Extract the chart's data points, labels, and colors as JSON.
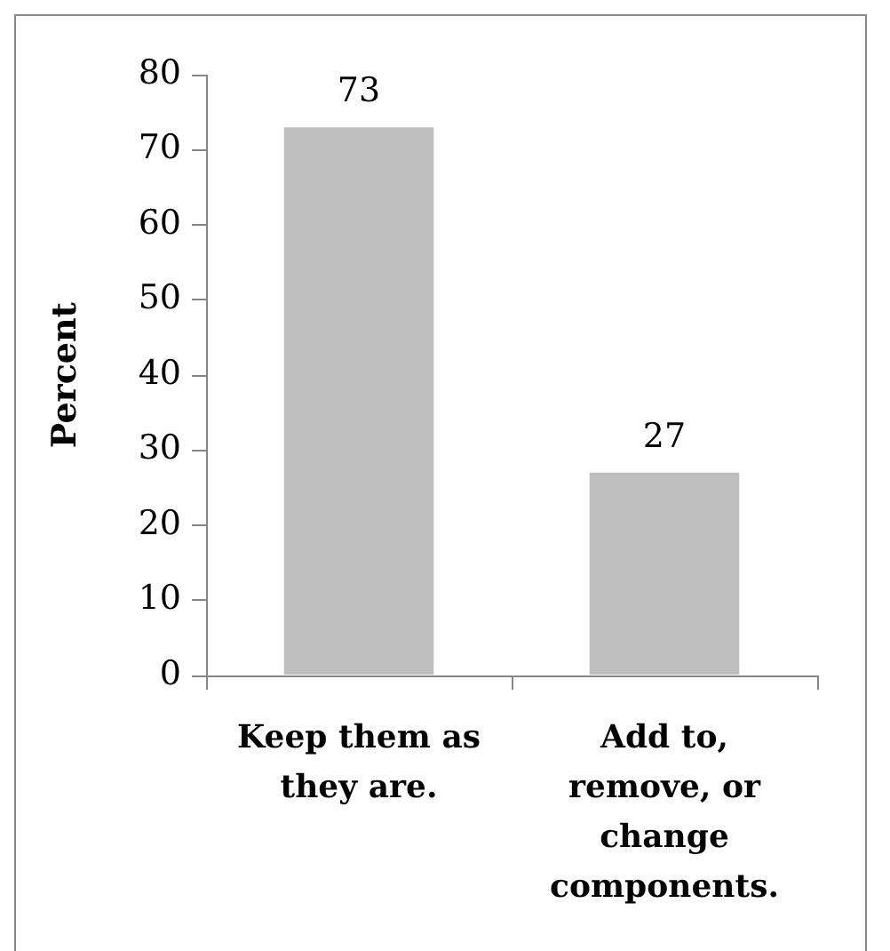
{
  "chart_data": {
    "type": "bar",
    "categories": [
      "Keep them as they are.",
      "Add to, remove, or change components."
    ],
    "values": [
      73,
      27
    ],
    "color": "#bfbfbf",
    "ylabel": "Percent",
    "ylim": [
      0,
      80
    ],
    "yticks": [
      0,
      10,
      20,
      30,
      40,
      50,
      60,
      70,
      80
    ],
    "data_labels": true
  }
}
